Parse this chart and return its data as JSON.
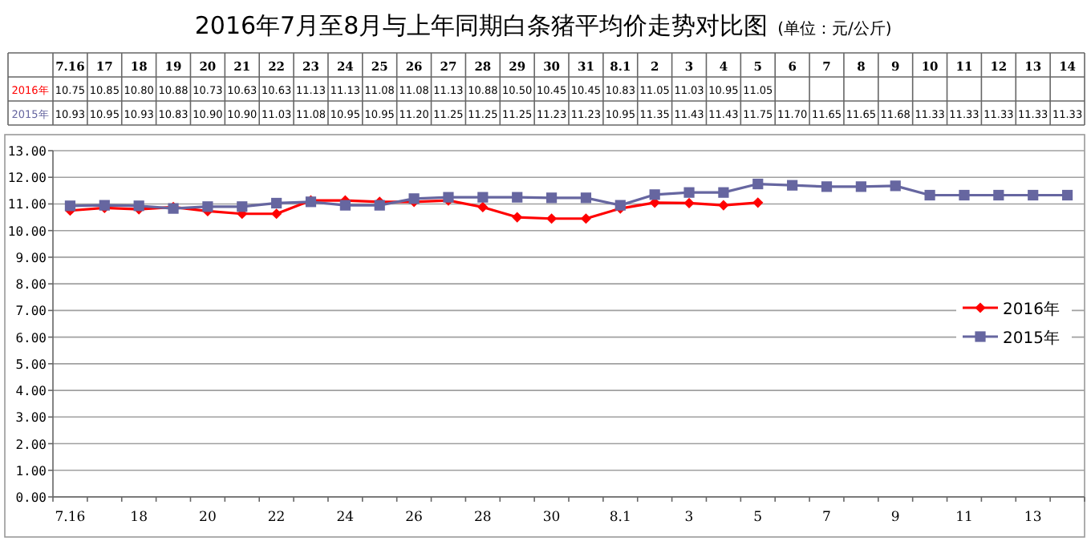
{
  "chart_data": {
    "type": "line",
    "title": "2016年7月至8月与上年同期白条猪平均价走势对比图",
    "subtitle": "(单位：元/公斤)",
    "categories": [
      "7.16",
      "17",
      "18",
      "19",
      "20",
      "21",
      "22",
      "23",
      "24",
      "25",
      "26",
      "27",
      "28",
      "29",
      "30",
      "31",
      "8.1",
      "2",
      "3",
      "4",
      "5",
      "6",
      "7",
      "8",
      "9",
      "10",
      "11",
      "12",
      "13",
      "14"
    ],
    "series": [
      {
        "name": "2016年",
        "color": "#ff0000",
        "marker": "diamond",
        "values": [
          10.75,
          10.85,
          10.8,
          10.88,
          10.73,
          10.63,
          10.63,
          11.13,
          11.13,
          11.08,
          11.08,
          11.13,
          10.88,
          10.5,
          10.45,
          10.45,
          10.83,
          11.05,
          11.03,
          10.95,
          11.05,
          null,
          null,
          null,
          null,
          null,
          null,
          null,
          null,
          null
        ],
        "value_labels": [
          "10.75",
          "10.85",
          "10.80",
          "10.88",
          "10.73",
          "10.63",
          "10.63",
          "11.13",
          "11.13",
          "11.08",
          "11.08",
          "11.13",
          "10.88",
          "10.50",
          "10.45",
          "10.45",
          "10.83",
          "11.05",
          "11.03",
          "10.95",
          "11.05",
          null,
          null,
          null,
          null,
          null,
          null,
          null,
          null,
          null
        ]
      },
      {
        "name": "2015年",
        "color": "#6666a0",
        "marker": "square",
        "values": [
          10.93,
          10.95,
          10.93,
          10.83,
          10.9,
          10.9,
          11.03,
          11.08,
          10.95,
          10.95,
          11.2,
          11.25,
          11.25,
          11.25,
          11.23,
          11.23,
          10.95,
          11.35,
          11.43,
          11.43,
          11.75,
          11.7,
          11.65,
          11.65,
          11.68,
          11.33,
          11.33,
          11.33,
          11.33,
          11.33
        ],
        "value_labels": [
          "10.93",
          "10.95",
          "10.93",
          "10.83",
          "10.90",
          "10.90",
          "11.03",
          "11.08",
          "10.95",
          "10.95",
          "11.20",
          "11.25",
          "11.25",
          "11.25",
          "11.23",
          "11.23",
          "10.95",
          "11.35",
          "11.43",
          "11.43",
          "11.75",
          "11.70",
          "11.65",
          "11.65",
          "11.68",
          "11.33",
          "11.33",
          "11.33",
          "11.33",
          "11.33"
        ]
      }
    ],
    "ylim": [
      0,
      13
    ],
    "yticks": [
      {
        "value": 0,
        "label": "0.00"
      },
      {
        "value": 1,
        "label": "1.00"
      },
      {
        "value": 2,
        "label": "2.00"
      },
      {
        "value": 3,
        "label": "3.00"
      },
      {
        "value": 4,
        "label": "4.00"
      },
      {
        "value": 5,
        "label": "5.00"
      },
      {
        "value": 6,
        "label": "6.00"
      },
      {
        "value": 7,
        "label": "7.00"
      },
      {
        "value": 8,
        "label": "8.00"
      },
      {
        "value": 9,
        "label": "9.00"
      },
      {
        "value": 10,
        "label": "10.00"
      },
      {
        "value": 11,
        "label": "11.00"
      },
      {
        "value": 12,
        "label": "12.00"
      },
      {
        "value": 13,
        "label": "13.00"
      }
    ],
    "grid": "y",
    "legend": "right",
    "line_style": "solid"
  }
}
